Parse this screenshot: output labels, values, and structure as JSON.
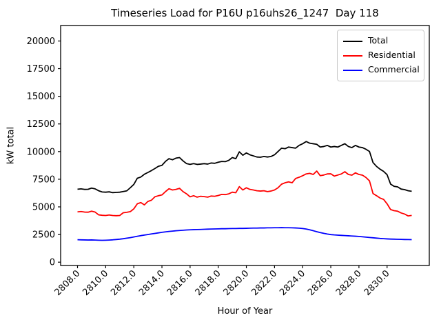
{
  "figure": {
    "title": "Timeseries Load for P16U p16uhs26_1247  Day 118",
    "xlabel": "Hour of Year",
    "ylabel": "kW total"
  },
  "chart_data": {
    "type": "line",
    "title": "Timeseries Load for P16U p16uhs26_1247  Day 118",
    "xlabel": "Hour of Year",
    "ylabel": "kW total",
    "grid": false,
    "legend_position": "upper right",
    "xlim": [
      2806.8,
      2833.0
    ],
    "ylim": [
      -300,
      21400
    ],
    "xticks": [
      2808,
      2810,
      2812,
      2814,
      2816,
      2818,
      2820,
      2822,
      2824,
      2826,
      2828,
      2830
    ],
    "xtick_labels": [
      "2808.0",
      "2810.0",
      "2812.0",
      "2814.0",
      "2816.0",
      "2818.0",
      "2820.0",
      "2822.0",
      "2824.0",
      "2826.0",
      "2828.0",
      "2830.0"
    ],
    "yticks": [
      0,
      2500,
      5000,
      7500,
      10000,
      12500,
      15000,
      17500,
      20000
    ],
    "x_start": 2808.0,
    "x_step": 0.25,
    "series": [
      {
        "name": "Total",
        "color": "#000000",
        "values": [
          6600,
          6630,
          6580,
          6590,
          6700,
          6630,
          6460,
          6350,
          6330,
          6360,
          6290,
          6310,
          6330,
          6390,
          6450,
          6730,
          7030,
          7590,
          7700,
          7950,
          8110,
          8280,
          8470,
          8670,
          8760,
          9110,
          9360,
          9260,
          9410,
          9460,
          9160,
          8910,
          8840,
          8910,
          8840,
          8870,
          8910,
          8870,
          8970,
          8940,
          9040,
          9110,
          9090,
          9210,
          9460,
          9360,
          9980,
          9670,
          9880,
          9710,
          9610,
          9510,
          9490,
          9560,
          9510,
          9560,
          9710,
          10010,
          10310,
          10260,
          10410,
          10360,
          10310,
          10560,
          10710,
          10910,
          10760,
          10710,
          10660,
          10410,
          10460,
          10560,
          10410,
          10460,
          10410,
          10560,
          10710,
          10460,
          10360,
          10560,
          10410,
          10360,
          10210,
          10010,
          9010,
          8660,
          8410,
          8210,
          7910,
          7060,
          6860,
          6810,
          6610,
          6560,
          6460,
          6410
        ]
      },
      {
        "name": "Residential",
        "color": "#ff0000",
        "values": [
          4550,
          4580,
          4530,
          4520,
          4610,
          4530,
          4280,
          4240,
          4220,
          4270,
          4220,
          4200,
          4220,
          4470,
          4510,
          4570,
          4820,
          5280,
          5390,
          5180,
          5490,
          5600,
          5910,
          6010,
          6080,
          6380,
          6640,
          6530,
          6580,
          6680,
          6380,
          6180,
          5910,
          6010,
          5880,
          5960,
          5930,
          5880,
          5980,
          5960,
          6030,
          6130,
          6110,
          6180,
          6330,
          6280,
          6830,
          6530,
          6730,
          6580,
          6530,
          6460,
          6430,
          6460,
          6380,
          6430,
          6530,
          6730,
          7050,
          7180,
          7260,
          7180,
          7570,
          7680,
          7820,
          7980,
          8030,
          7930,
          8240,
          7820,
          7880,
          7980,
          7990,
          7780,
          7880,
          7980,
          8180,
          7930,
          7870,
          8080,
          7930,
          7870,
          7660,
          7350,
          6210,
          6010,
          5800,
          5680,
          5280,
          4760,
          4660,
          4610,
          4450,
          4350,
          4180,
          4230
        ]
      },
      {
        "name": "Commercial",
        "color": "#0000ff",
        "values": [
          2030,
          2020,
          2010,
          2005,
          2010,
          2000,
          1985,
          1975,
          1985,
          2000,
          2020,
          2050,
          2080,
          2120,
          2170,
          2220,
          2280,
          2340,
          2400,
          2450,
          2500,
          2550,
          2600,
          2650,
          2700,
          2740,
          2780,
          2810,
          2840,
          2865,
          2890,
          2910,
          2925,
          2940,
          2950,
          2960,
          2975,
          2985,
          2995,
          3005,
          3015,
          3025,
          3025,
          3035,
          3045,
          3045,
          3055,
          3055,
          3065,
          3075,
          3085,
          3085,
          3095,
          3095,
          3105,
          3105,
          3115,
          3115,
          3125,
          3115,
          3115,
          3105,
          3095,
          3075,
          3045,
          2995,
          2925,
          2845,
          2755,
          2675,
          2605,
          2545,
          2495,
          2465,
          2445,
          2425,
          2405,
          2385,
          2365,
          2345,
          2325,
          2295,
          2265,
          2235,
          2205,
          2175,
          2145,
          2125,
          2105,
          2090,
          2080,
          2070,
          2060,
          2050,
          2045,
          2040
        ]
      }
    ]
  }
}
